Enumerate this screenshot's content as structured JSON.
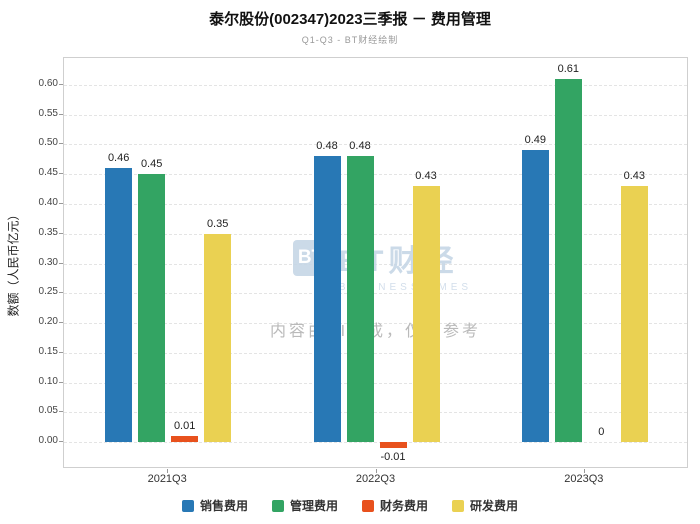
{
  "title": "泰尔股份(002347)2023三季报 － 费用管理",
  "subtitle": "Q1-Q3 - BT财经绘制",
  "watermark": {
    "logo_mark": "BT",
    "logo_text": "BT财经",
    "logo_sub": "BUSINESSTIMES",
    "disclaimer": "内容由AI生成，仅供参考"
  },
  "chart_data": {
    "type": "bar",
    "categories": [
      "2021Q3",
      "2022Q3",
      "2023Q3"
    ],
    "series": [
      {
        "name": "销售费用",
        "color": "#2878b5",
        "values": [
          0.46,
          0.48,
          0.49
        ]
      },
      {
        "name": "管理费用",
        "color": "#33a463",
        "values": [
          0.45,
          0.48,
          0.61
        ]
      },
      {
        "name": "财务费用",
        "color": "#e8511d",
        "values": [
          0.01,
          -0.01,
          0
        ]
      },
      {
        "name": "研发费用",
        "color": "#ead152",
        "values": [
          0.35,
          0.43,
          0.43
        ]
      }
    ],
    "title": "泰尔股份(002347)2023三季报 － 费用管理",
    "xlabel": "",
    "ylabel": "数额（人民币亿元）",
    "ylim": [
      -0.045,
      0.645
    ],
    "yticks": [
      0.0,
      0.05,
      0.1,
      0.15,
      0.2,
      0.25,
      0.3,
      0.35,
      0.4,
      0.45,
      0.5,
      0.55,
      0.6
    ],
    "grid": true,
    "legend_position": "bottom",
    "value_labels": true
  }
}
